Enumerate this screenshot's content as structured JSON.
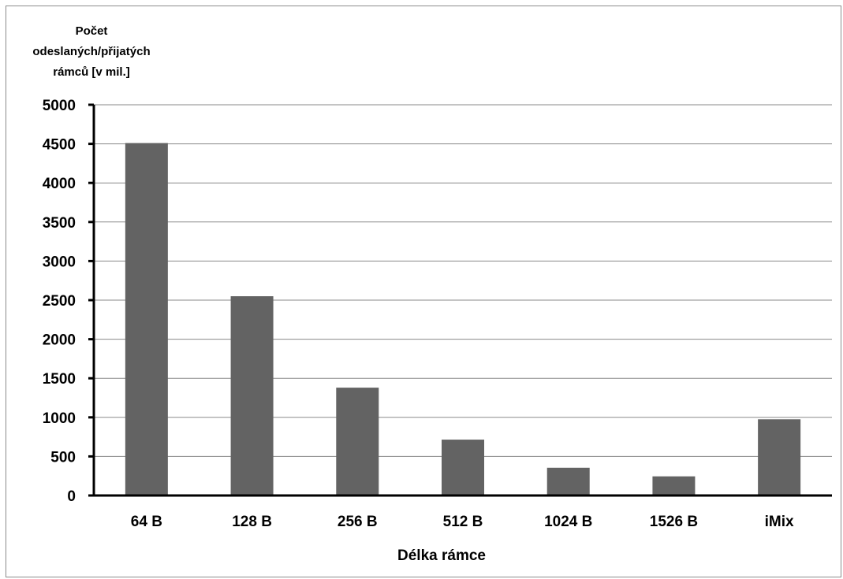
{
  "chart_data": {
    "type": "bar",
    "title": "",
    "ylabel_lines": [
      "Počet",
      "odeslaných/přijatých",
      "rámců [v mil.]"
    ],
    "xlabel": "Délka rámce",
    "categories": [
      "64 B",
      "128 B",
      "256 B",
      "512 B",
      "1024 B",
      "1526 B",
      "iMix"
    ],
    "values": [
      4510,
      2550,
      1380,
      715,
      355,
      245,
      975
    ],
    "ylim": [
      0,
      5000
    ],
    "yticks": [
      0,
      500,
      1000,
      1500,
      2000,
      2500,
      3000,
      3500,
      4000,
      4500,
      5000
    ],
    "grid": true,
    "legend": "none",
    "bar_color": "#636363",
    "grid_color": "#8a8a8a",
    "axis_color": "#000000"
  }
}
